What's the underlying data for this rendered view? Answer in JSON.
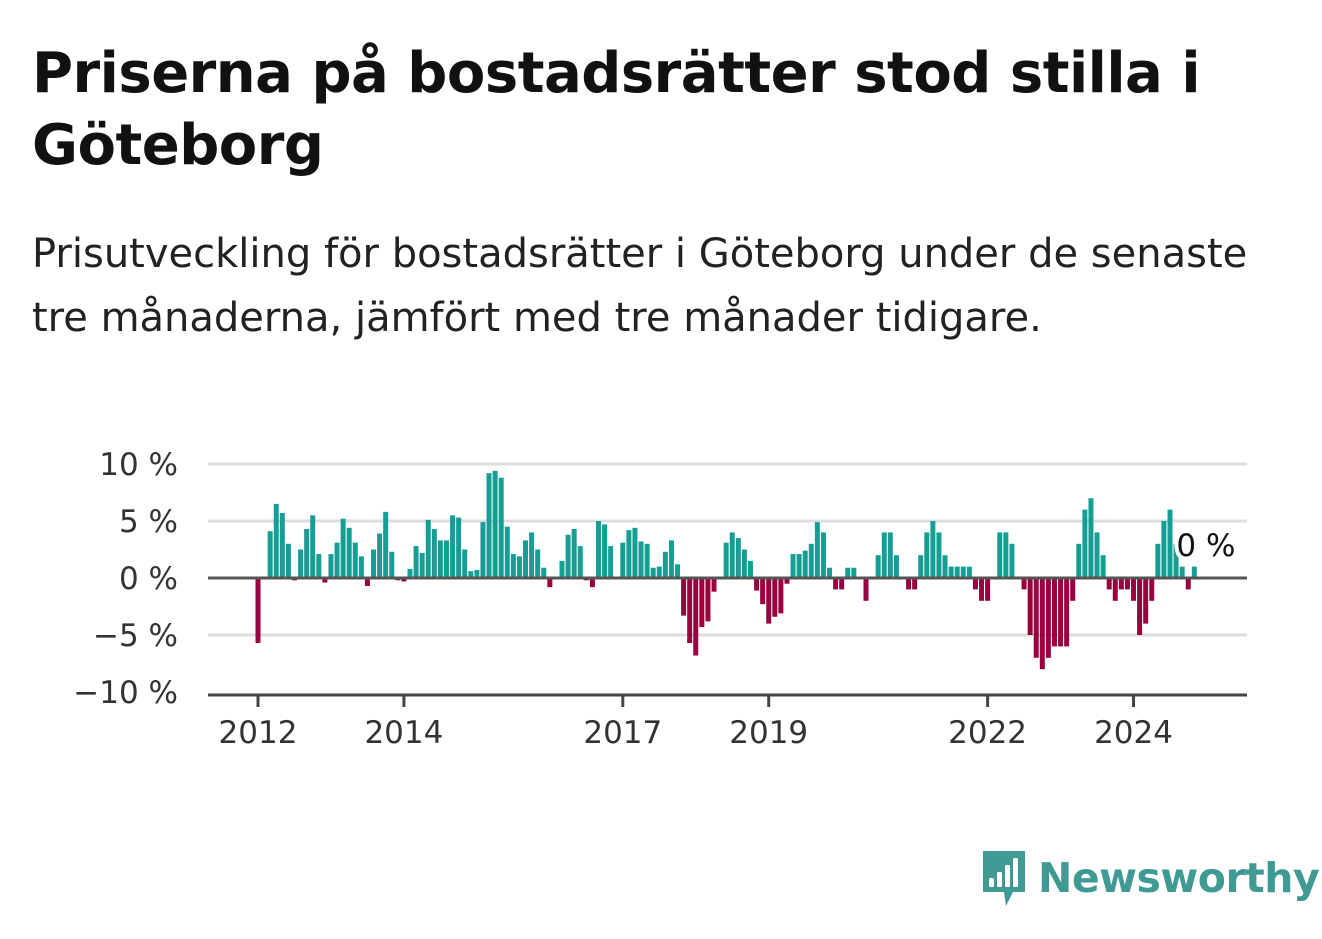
{
  "title": "Priserna på bostadsrätter stod stilla i Göteborg",
  "subtitle": "Prisutveckling för bostadsrätter i Göteborg under de senaste tre månaderna, jämfört med tre månader tidigare.",
  "brand": {
    "name": "Newsworthy",
    "color": "#3f9a93"
  },
  "colors": {
    "positive": "#149e94",
    "negative": "#99003d",
    "grid": "#dddddd",
    "zero_line": "#555555",
    "axis": "#444444"
  },
  "chart_data": {
    "type": "bar",
    "title": "Priserna på bostadsrätter stod stilla i Göteborg",
    "subtitle": "Prisutveckling för bostadsrätter i Göteborg under de senaste tre månaderna, jämfört med tre månader tidigare.",
    "xlabel": "",
    "ylabel": "",
    "ylim": [
      -10,
      10
    ],
    "y_ticks": [
      10,
      5,
      0,
      -5,
      -10
    ],
    "y_tick_labels": [
      "10 %",
      "5 %",
      "0 %",
      "−5 %",
      "−10 %"
    ],
    "x_ticks": [
      {
        "label": "2012",
        "date": "2012-01"
      },
      {
        "label": "2014",
        "date": "2014-01"
      },
      {
        "label": "2017",
        "date": "2017-01"
      },
      {
        "label": "2019",
        "date": "2019-01"
      },
      {
        "label": "2022",
        "date": "2022-01"
      },
      {
        "label": "2024",
        "date": "2024-01"
      }
    ],
    "grid": true,
    "legend": "none",
    "end_label": "0 %",
    "start": "2012-01",
    "series": [
      {
        "values": [
          -5.7,
          0,
          4.1,
          6.5,
          5.7,
          3.0,
          -0.2,
          2.5,
          4.3,
          5.5,
          2.1,
          -0.4,
          2.1,
          3.1,
          5.2,
          4.4,
          3.1,
          1.9,
          -0.7,
          2.5,
          3.9,
          5.8,
          2.3,
          -0.2,
          -0.3,
          0.8,
          2.8,
          2.2,
          5.1,
          4.3,
          3.3,
          3.3,
          5.5,
          5.3,
          2.5,
          0.6,
          0.7,
          4.9,
          9.2,
          9.4,
          8.8,
          4.5,
          2.1,
          1.9,
          3.3,
          4.0,
          2.5,
          0.9,
          -0.8,
          0,
          1.5,
          3.8,
          4.3,
          2.8,
          -0.2,
          -0.8,
          5.0,
          4.7,
          2.8,
          0,
          3.1,
          4.2,
          4.4,
          3.2,
          3.0,
          0.9,
          1.0,
          2.3,
          3.3,
          1.2,
          -3.3,
          -5.7,
          -6.8,
          -4.3,
          -3.8,
          -1.2,
          0,
          3.1,
          4.0,
          3.5,
          2.5,
          1.5,
          -1.1,
          -2.3,
          -4.0,
          -3.4,
          -3.1,
          -0.5,
          2.1,
          2.1,
          2.4,
          3.0,
          4.9,
          4.0,
          0.9,
          -1.0,
          -1.0,
          0.9,
          0.9,
          0,
          -2.0,
          0,
          2.0,
          4.0,
          4.0,
          2.0,
          0,
          -1.0,
          -1.0,
          2.0,
          4.0,
          5.0,
          4.0,
          2.0,
          1.0,
          1.0,
          1.0,
          1.0,
          -1.0,
          -2.0,
          -2.0,
          0,
          4.0,
          4.0,
          3.0,
          0,
          -1.0,
          -5.0,
          -7.0,
          -8.0,
          -7.0,
          -6.0,
          -6.0,
          -6.0,
          -2.0,
          3.0,
          6.0,
          7.0,
          4.0,
          2.0,
          -1.0,
          -2.0,
          -1.0,
          -1.0,
          -2.0,
          -5.0,
          -4.0,
          -2.0,
          3.0,
          5.0,
          6.0,
          3.0,
          1.0,
          -1.0,
          1.0,
          0
        ]
      }
    ]
  }
}
